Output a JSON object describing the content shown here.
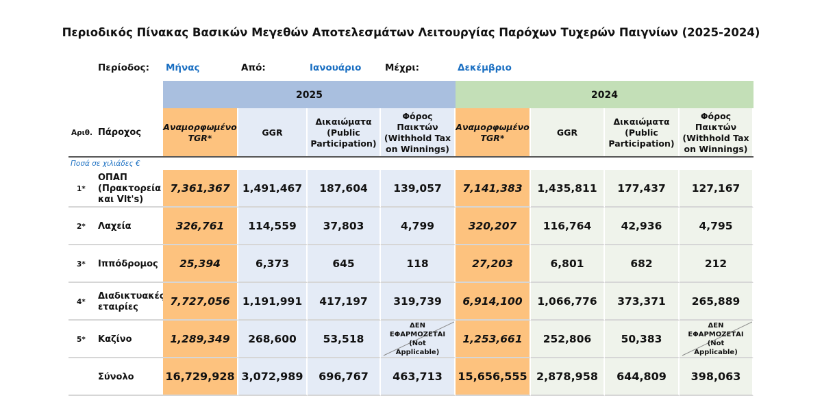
{
  "title": "Περιοδικός Πίνακας Βασικών Μεγεθών Αποτελεσμάτων Λειτουργίας Παρόχων Τυχερών Παιγνίων (2025-2024)",
  "period": {
    "label": "Περίοδος:",
    "value": "Μήνας",
    "from_label": "Από:",
    "from_value": "Ιανουάριο",
    "to_label": "Μέχρι:",
    "to_value": "Δεκέμβριο"
  },
  "years": [
    "2025",
    "2024"
  ],
  "columns": {
    "num": "Αριθ.",
    "provider": "Πάροχος",
    "tgr": "Αναμορφωμένο TGR*",
    "ggr": "GGR",
    "rights": "Δικαιώματα (Public Participation)",
    "tax": "Φόρος Παικτών (Withhold Tax on Winnings)"
  },
  "note": "Ποσά σε χιλιάδες €",
  "not_applicable": "ΔΕΝ ΕΦΑΡΜΟΖΕΤΑΙ (Not Applicable)",
  "rows": [
    {
      "num": "1*",
      "provider": "ΟΠΑΠ (Πρακτορεία και Vlt's)",
      "v": [
        "7,361,367",
        "1,491,467",
        "187,604",
        "139,057",
        "7,141,383",
        "1,435,811",
        "177,437",
        "127,167"
      ]
    },
    {
      "num": "2*",
      "provider": "Λαχεία",
      "v": [
        "326,761",
        "114,559",
        "37,803",
        "4,799",
        "320,207",
        "116,764",
        "42,936",
        "4,795"
      ]
    },
    {
      "num": "3*",
      "provider": "Ιππόδρομος",
      "v": [
        "25,394",
        "6,373",
        "645",
        "118",
        "27,203",
        "6,801",
        "682",
        "212"
      ]
    },
    {
      "num": "4*",
      "provider": "Διαδικτυακές εταιρίες",
      "v": [
        "7,727,056",
        "1,191,991",
        "417,197",
        "319,739",
        "6,914,100",
        "1,066,776",
        "373,371",
        "265,889"
      ]
    },
    {
      "num": "5*",
      "provider": "Καζίνο",
      "v": [
        "1,289,349",
        "268,600",
        "53,518",
        null,
        "1,253,661",
        "252,806",
        "50,383",
        null
      ]
    }
  ],
  "total": {
    "label": "Σύνολο",
    "v": [
      "16,729,928",
      "3,072,989",
      "696,767",
      "463,713",
      "15,656,555",
      "2,878,958",
      "644,809",
      "398,063"
    ]
  },
  "colors": {
    "tgr": "#fdc27e",
    "header_2025": "#a9bfdf",
    "cells_2025": "#e4ebf6",
    "header_2024": "#c3dfb7",
    "cells_2024": "#eff3eb",
    "accent": "#1a6fc2"
  }
}
